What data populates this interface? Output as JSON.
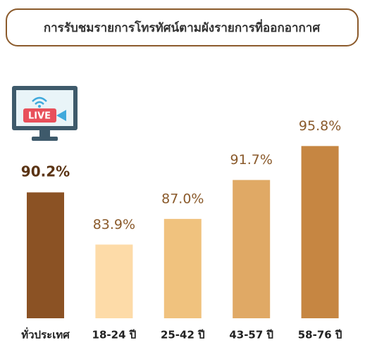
{
  "chart_data": {
    "type": "bar",
    "title": "การรับชมรายการโทรทัศน์ตามผังรายการที่ออกอากาศ",
    "categories": [
      "ทั่วประเทศ",
      "18-24 ปี",
      "25-42 ปี",
      "43-57 ปี",
      "58-76 ปี"
    ],
    "values": [
      90.2,
      83.9,
      87.0,
      91.7,
      95.8
    ],
    "value_labels": [
      "90.2%",
      "83.9%",
      "87.0%",
      "91.7%",
      "95.8%"
    ],
    "colors": [
      "#8b5224",
      "#fddba8",
      "#f0c27e",
      "#e0a965",
      "#c68642"
    ],
    "ylim": [
      75,
      100
    ]
  }
}
